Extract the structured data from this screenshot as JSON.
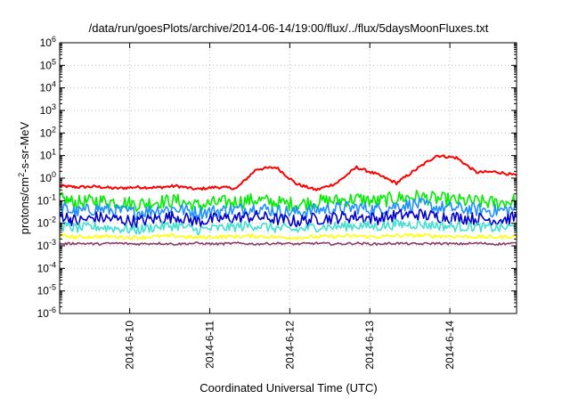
{
  "chart_data": {
    "type": "line",
    "title": "/data/run/goesPlots/archive/2014-06-14/19:00/flux/../flux/5daysMoonFluxes.txt",
    "xlabel": "Coordinated Universal Time (UTC)",
    "ylabel": "protons/cm2-s-sr-MeV",
    "ylabel_parts": [
      "protons/cm",
      "2",
      "-s-sr-MeV"
    ],
    "yscale": "log",
    "ylim": [
      1e-06,
      1000000.0
    ],
    "xlim": [
      "2014-06-09 03:00",
      "2014-06-14 20:00"
    ],
    "x_ticks": [
      "2014-6-10",
      "2014-6-11",
      "2014-6-12",
      "2014-6-13",
      "2014-6-14"
    ],
    "y_ticks": [
      {
        "base": "10",
        "exp": "6"
      },
      {
        "base": "10",
        "exp": "5"
      },
      {
        "base": "10",
        "exp": "4"
      },
      {
        "base": "10",
        "exp": "3"
      },
      {
        "base": "10",
        "exp": "2"
      },
      {
        "base": "10",
        "exp": "1"
      },
      {
        "base": "10",
        "exp": "0"
      },
      {
        "base": "10",
        "exp": "-1"
      },
      {
        "base": "10",
        "exp": "-2"
      },
      {
        "base": "10",
        "exp": "-3"
      },
      {
        "base": "10",
        "exp": "-4"
      },
      {
        "base": "10",
        "exp": "-5"
      },
      {
        "base": "10",
        "exp": "-6"
      }
    ],
    "grid": true,
    "legend": "none",
    "x": [
      "2014-06-09 03:00",
      "2014-06-09 08:00",
      "2014-06-09 14:00",
      "2014-06-09 20:00",
      "2014-06-10 02:00",
      "2014-06-10 08:00",
      "2014-06-10 14:00",
      "2014-06-10 20:00",
      "2014-06-11 02:00",
      "2014-06-11 08:00",
      "2014-06-11 14:00",
      "2014-06-11 20:00",
      "2014-06-12 02:00",
      "2014-06-12 08:00",
      "2014-06-12 14:00",
      "2014-06-12 20:00",
      "2014-06-13 02:00",
      "2014-06-13 08:00",
      "2014-06-13 14:00",
      "2014-06-13 20:00",
      "2014-06-14 02:00",
      "2014-06-14 08:00",
      "2014-06-14 14:00",
      "2014-06-14 20:00"
    ],
    "series": [
      {
        "color": "#ff0000",
        "values": [
          0.45,
          0.4,
          0.42,
          0.35,
          0.4,
          0.38,
          0.45,
          0.32,
          0.4,
          0.35,
          2.5,
          3.0,
          0.55,
          0.3,
          0.6,
          3.0,
          1.5,
          0.6,
          2.5,
          10,
          8,
          1.8,
          1.9,
          1.3
        ]
      },
      {
        "color": "#00ee00",
        "values": [
          0.12,
          0.08,
          0.1,
          0.09,
          0.07,
          0.09,
          0.1,
          0.06,
          0.08,
          0.09,
          0.11,
          0.08,
          0.07,
          0.09,
          0.1,
          0.12,
          0.09,
          0.13,
          0.15,
          0.12,
          0.1,
          0.09,
          0.08,
          0.1
        ]
      },
      {
        "color": "#1e90ff",
        "values": [
          0.05,
          0.03,
          0.045,
          0.035,
          0.03,
          0.04,
          0.045,
          0.03,
          0.035,
          0.04,
          0.05,
          0.035,
          0.03,
          0.04,
          0.045,
          0.05,
          0.04,
          0.06,
          0.07,
          0.05,
          0.045,
          0.04,
          0.035,
          0.045
        ]
      },
      {
        "color": "#0000cd",
        "values": [
          0.025,
          0.012,
          0.018,
          0.015,
          0.012,
          0.016,
          0.02,
          0.012,
          0.015,
          0.018,
          0.02,
          0.015,
          0.012,
          0.016,
          0.018,
          0.02,
          0.016,
          0.022,
          0.025,
          0.02,
          0.018,
          0.016,
          0.014,
          0.018
        ]
      },
      {
        "color": "#40e0d0",
        "values": [
          0.008,
          0.006,
          0.007,
          0.006,
          0.005,
          0.007,
          0.008,
          0.005,
          0.006,
          0.007,
          0.008,
          0.006,
          0.005,
          0.007,
          0.007,
          0.008,
          0.007,
          0.009,
          0.009,
          0.008,
          0.007,
          0.007,
          0.006,
          0.007
        ]
      },
      {
        "color": "#ffff00",
        "values": [
          0.0028,
          0.0024,
          0.0026,
          0.0025,
          0.0023,
          0.0026,
          0.0027,
          0.0023,
          0.0025,
          0.0026,
          0.0027,
          0.0024,
          0.0023,
          0.0025,
          0.0026,
          0.0027,
          0.0025,
          0.0028,
          0.0029,
          0.0027,
          0.0026,
          0.0025,
          0.0024,
          0.0026
        ]
      },
      {
        "color": "#8b3a62",
        "values": [
          0.0012,
          0.0013,
          0.0012,
          0.0013,
          0.0012,
          0.0013,
          0.0012,
          0.0013,
          0.0012,
          0.0013,
          0.0012,
          0.0013,
          0.0012,
          0.0013,
          0.0012,
          0.0013,
          0.0012,
          0.0013,
          0.0012,
          0.0013,
          0.0012,
          0.0013,
          0.0012,
          0.0013
        ]
      }
    ]
  }
}
